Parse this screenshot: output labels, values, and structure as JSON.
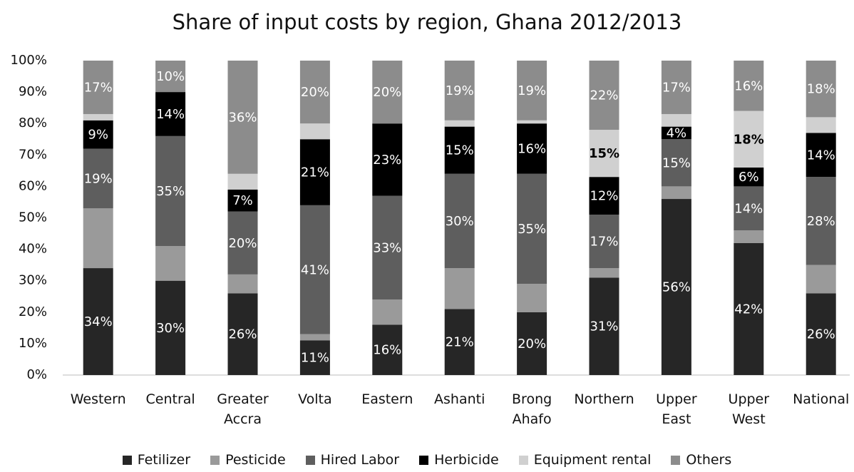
{
  "chart_data": {
    "type": "stacked_bar",
    "title": "Share of input costs by region, Ghana 2012/2013",
    "categories": [
      "Western",
      "Central",
      "Greater Accra",
      "Volta",
      "Eastern",
      "Ashanti",
      "Brong Ahafo",
      "Northern",
      "Upper East",
      "Upper West",
      "National"
    ],
    "ylim": [
      0,
      100
    ],
    "yticks": [
      {
        "value": 0,
        "label": "0%"
      },
      {
        "value": 10,
        "label": "10%"
      },
      {
        "value": 20,
        "label": "20%"
      },
      {
        "value": 30,
        "label": "30%"
      },
      {
        "value": 40,
        "label": "40%"
      },
      {
        "value": 50,
        "label": "50%"
      },
      {
        "value": 60,
        "label": "60%"
      },
      {
        "value": 70,
        "label": "70%"
      },
      {
        "value": 80,
        "label": "80%"
      },
      {
        "value": 90,
        "label": "90%"
      },
      {
        "value": 100,
        "label": "100%"
      }
    ],
    "legend": "bottom",
    "series": [
      {
        "name": "Fetilizer",
        "color": "#262626",
        "values": [
          34,
          30,
          26,
          11,
          16,
          21,
          20,
          31,
          56,
          42,
          26
        ],
        "value_labels": [
          "34%",
          "30%",
          "26%",
          "11%",
          "16%",
          "21%",
          "20%",
          "31%",
          "56%",
          "42%",
          "26%"
        ]
      },
      {
        "name": "Pesticide",
        "color": "#9a9a9a",
        "values": [
          19,
          11,
          6,
          2,
          8,
          13,
          9,
          3,
          4,
          4,
          9
        ],
        "value_labels": [
          null,
          null,
          null,
          null,
          null,
          null,
          null,
          null,
          null,
          null,
          null
        ]
      },
      {
        "name": "Hired Labor",
        "color": "#5e5e5e",
        "values": [
          19,
          35,
          20,
          41,
          33,
          30,
          35,
          17,
          15,
          14,
          28
        ],
        "value_labels": [
          "19%",
          "35%",
          "20%",
          "41%",
          "33%",
          "30%",
          "35%",
          "17%",
          "15%",
          "14%",
          "28%"
        ]
      },
      {
        "name": "Herbicide",
        "color": "#000000",
        "values": [
          9,
          14,
          7,
          21,
          23,
          15,
          16,
          12,
          4,
          6,
          14
        ],
        "value_labels": [
          "9%",
          "14%",
          "7%",
          "21%",
          "23%",
          "15%",
          "16%",
          "12%",
          "4%",
          "6%",
          "14%"
        ]
      },
      {
        "name": "Equipment rental",
        "color": "#d0d0d0",
        "values": [
          2,
          0,
          5,
          5,
          0,
          2,
          1,
          15,
          4,
          18,
          5
        ],
        "value_labels": [
          null,
          null,
          null,
          null,
          null,
          null,
          null,
          "15%",
          null,
          "18%",
          null
        ]
      },
      {
        "name": "Others",
        "color": "#8c8c8c",
        "values": [
          17,
          10,
          36,
          20,
          20,
          19,
          19,
          22,
          17,
          16,
          18
        ],
        "value_labels": [
          "17%",
          "10%",
          "36%",
          "20%",
          "20%",
          "19%",
          "19%",
          "22%",
          "17%",
          "16%",
          "18%"
        ]
      }
    ]
  }
}
